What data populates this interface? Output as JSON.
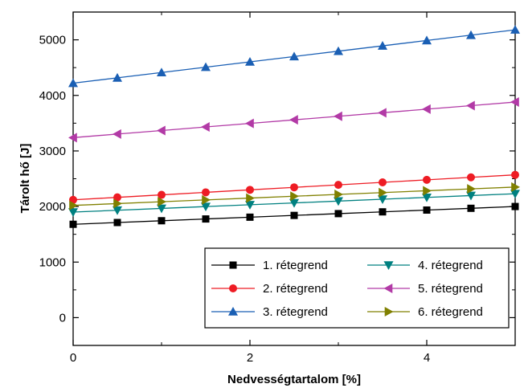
{
  "chart_data": {
    "type": "line",
    "xlabel": "Nedvességtartalom [%]",
    "ylabel": "Tárolt hő [J]",
    "xlim": [
      0,
      5
    ],
    "ylim": [
      -500,
      5500
    ],
    "xticks": [
      0,
      2,
      4
    ],
    "xtick_labels": [
      "0",
      "2",
      "4"
    ],
    "yticks": [
      0,
      1000,
      2000,
      3000,
      4000,
      5000
    ],
    "ytick_labels": [
      "0",
      "1000",
      "2000",
      "3000",
      "4000",
      "5000"
    ],
    "grid": false,
    "legend_position": "bottom-right",
    "x": [
      0,
      0.5,
      1,
      1.5,
      2,
      2.5,
      3,
      3.5,
      4,
      4.5,
      5
    ],
    "series": [
      {
        "name": "1. rétegrend",
        "color": "#000000",
        "marker": "square",
        "values": [
          1680,
          1712,
          1744,
          1776,
          1808,
          1840,
          1872,
          1904,
          1936,
          1968,
          2000
        ]
      },
      {
        "name": "2. rétegrend",
        "color": "#ee1c24",
        "marker": "circle",
        "values": [
          2120,
          2165,
          2210,
          2255,
          2300,
          2345,
          2390,
          2435,
          2480,
          2525,
          2570
        ]
      },
      {
        "name": "3. rétegrend",
        "color": "#1a5fb4",
        "marker": "triangle-up",
        "values": [
          4220,
          4316,
          4412,
          4508,
          4604,
          4700,
          4796,
          4892,
          4988,
          5084,
          5180
        ]
      },
      {
        "name": "4. rétegrend",
        "color": "#008080",
        "marker": "triangle-down",
        "values": [
          1900,
          1933,
          1966,
          1999,
          2032,
          2065,
          2098,
          2131,
          2164,
          2197,
          2230
        ]
      },
      {
        "name": "5. rétegrend",
        "color": "#b23aa6",
        "marker": "triangle-left",
        "values": [
          3240,
          3304,
          3368,
          3432,
          3496,
          3560,
          3624,
          3688,
          3752,
          3816,
          3880
        ]
      },
      {
        "name": "6. rétegrend",
        "color": "#808000",
        "marker": "triangle-right",
        "values": [
          2020,
          2053,
          2086,
          2119,
          2152,
          2185,
          2218,
          2251,
          2284,
          2317,
          2350
        ]
      }
    ]
  }
}
